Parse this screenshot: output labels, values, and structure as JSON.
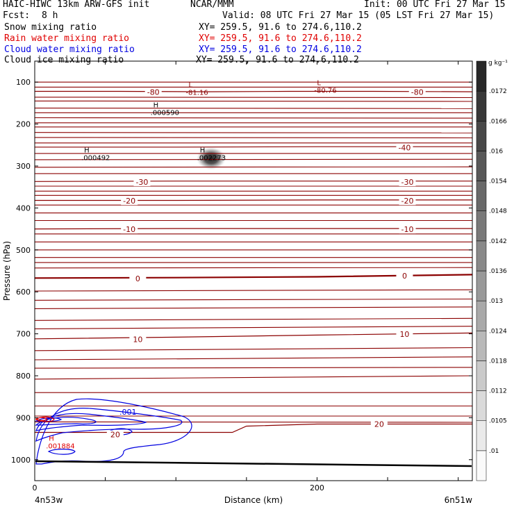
{
  "header": {
    "title_left": "HAIC-HIWC 13km ARW-GFS init",
    "org": "NCAR/MMM",
    "init": "Init: 00 UTC Fri 27 Mar 15",
    "fcst_label": "Fcst:",
    "fcst_value": "8 h",
    "valid": "Valid: 08 UTC Fri 27 Mar 15 (05 LST Fri 27 Mar 15)",
    "rows": [
      {
        "label": "Snow mixing ratio",
        "xy": "XY= 259.5, 91.6 to 274.6,110.2",
        "color": "#000000"
      },
      {
        "label": "Rain water mixing ratio",
        "xy": "XY= 259.5, 91.6 to 274.6,110.2",
        "color": "#e00000"
      },
      {
        "label": "Cloud water mixing ratio",
        "xy": "XY= 259.5, 91.6 to 274.6,110.2",
        "color": "#0000e0"
      },
      {
        "label": "Cloud ice mixing ratio",
        "xy": "XY= 259.5, 91.6 to 274.6,110.2",
        "color": "#000000"
      }
    ]
  },
  "axes": {
    "ylabel": "Pressure (hPa)",
    "xlabel": "Distance (km)",
    "x_start_label": "4n53w",
    "x_end_label": "6n51w",
    "y_ticks": [
      "100",
      "200",
      "300",
      "400",
      "500",
      "600",
      "700",
      "800",
      "900",
      "1000"
    ],
    "x_ticks": [
      "0",
      "200"
    ]
  },
  "chart_data": {
    "type": "line",
    "title": "Snow mixing ratio",
    "xlim": [
      0,
      310
    ],
    "ylim": [
      1050,
      50
    ],
    "y_ticks": [
      100,
      200,
      300,
      400,
      500,
      600,
      700,
      800,
      900,
      1000
    ],
    "x_ticks": [
      0,
      200
    ],
    "temperature_contours": [
      {
        "level": "-80",
        "x": [
          0,
          60,
          120,
          180,
          240,
          310
        ],
        "y": [
          122,
          122,
          123,
          122,
          122,
          123
        ]
      },
      {
        "level": "-40",
        "x": [
          0,
          100,
          200,
          310
        ],
        "y": [
          255,
          255,
          254,
          254
        ]
      },
      {
        "level": "-30",
        "x": [
          0,
          100,
          200,
          310
        ],
        "y": [
          337,
          336,
          336,
          336
        ]
      },
      {
        "level": "-20",
        "x": [
          0,
          100,
          200,
          310
        ],
        "y": [
          382,
          382,
          381,
          381
        ]
      },
      {
        "level": "-10",
        "x": [
          0,
          100,
          200,
          310
        ],
        "y": [
          450,
          449,
          449,
          449
        ]
      },
      {
        "level": "0",
        "x": [
          0,
          100,
          200,
          310
        ],
        "y": [
          567,
          566,
          564,
          559
        ]
      },
      {
        "level": "10",
        "x": [
          0,
          100,
          200,
          310
        ],
        "y": [
          712,
          708,
          703,
          698
        ]
      },
      {
        "level": "20",
        "x": [
          0,
          140,
          150,
          200,
          310
        ],
        "y": [
          935,
          935,
          920,
          915,
          915
        ]
      }
    ],
    "contour_labels": [
      {
        "text": "-80",
        "x": 84,
        "y": 124
      },
      {
        "text": "-80",
        "x": 271,
        "y": 124
      },
      {
        "text": "-40",
        "x": 262,
        "y": 256
      },
      {
        "text": "-30",
        "x": 76,
        "y": 338
      },
      {
        "text": "-30",
        "x": 264,
        "y": 338
      },
      {
        "text": "-20",
        "x": 67,
        "y": 383
      },
      {
        "text": "-20",
        "x": 264,
        "y": 383
      },
      {
        "text": "-10",
        "x": 67,
        "y": 451
      },
      {
        "text": "-10",
        "x": 264,
        "y": 451
      },
      {
        "text": "0",
        "x": 73,
        "y": 568
      },
      {
        "text": "0",
        "x": 262,
        "y": 562
      },
      {
        "text": "10",
        "x": 73,
        "y": 713
      },
      {
        "text": "10",
        "x": 262,
        "y": 701
      },
      {
        "text": "20",
        "x": 57,
        "y": 940
      },
      {
        "text": "20",
        "x": 244,
        "y": 915
      }
    ],
    "cloud_water_contour_label": ".001",
    "highs_lows": [
      {
        "type": "L",
        "value": "-81.16",
        "x": 107,
        "y": 112,
        "color": "#8b0000"
      },
      {
        "type": "L",
        "value": "-80.76",
        "x": 198,
        "y": 107,
        "color": "#8b0000"
      },
      {
        "type": "H",
        "value": ".000590",
        "x": 82,
        "y": 160,
        "color": "#000000"
      },
      {
        "type": "H",
        "value": ".000492",
        "x": 33,
        "y": 268,
        "color": "#000000"
      },
      {
        "type": "H",
        "value": ".002273",
        "x": 115,
        "y": 268,
        "color": "#000000"
      },
      {
        "type": "H",
        "value": ".001884",
        "x": 8,
        "y": 955,
        "color": "#e00000"
      }
    ],
    "shaded_max": {
      "x": 125,
      "y": 282,
      "value": 0.002273
    },
    "colorbar": {
      "unit": "g kg⁻¹",
      "levels": [
        ".01",
        ".0105",
        ".0112",
        ".0118",
        ".0124",
        ".013",
        ".0136",
        ".0142",
        ".0148",
        ".0154",
        ".016",
        ".0166",
        ".0172"
      ]
    }
  },
  "colors": {
    "temperature": "#8b0000",
    "rain": "#e00000",
    "cloud_water": "#0000e0",
    "ground": "#000000"
  }
}
